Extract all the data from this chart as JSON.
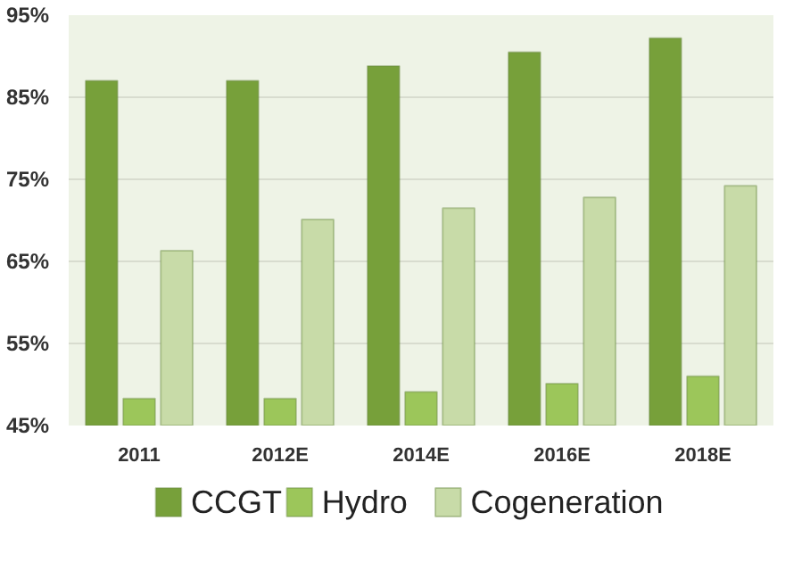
{
  "chart_data": {
    "type": "bar",
    "categories": [
      "2011",
      "2012E",
      "2014E",
      "2016E",
      "2018E"
    ],
    "series": [
      {
        "name": "CCGT",
        "color": "#77a03a",
        "values": [
          87,
          87,
          88.8,
          90.5,
          92.2
        ]
      },
      {
        "name": "Hydro",
        "color": "#9cc65a",
        "values": [
          48.3,
          48.3,
          49.1,
          50.1,
          51
        ]
      },
      {
        "name": "Cogeneration",
        "color": "#c8dba8",
        "values": [
          66.3,
          70.1,
          71.5,
          72.8,
          74.2
        ]
      }
    ],
    "ylim": [
      45,
      95
    ],
    "yticks": [
      {
        "value": 45,
        "label": "45%"
      },
      {
        "value": 55,
        "label": "55%"
      },
      {
        "value": 65,
        "label": "65%"
      },
      {
        "value": 75,
        "label": "75%"
      },
      {
        "value": 85,
        "label": "85%"
      },
      {
        "value": 95,
        "label": "95%"
      }
    ],
    "grid": "y",
    "legend": "bottom"
  }
}
